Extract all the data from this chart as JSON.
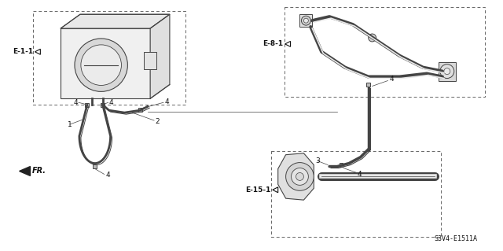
{
  "bg_color": "#ffffff",
  "diagram_code": "S3V4-E1511A",
  "text_color": "#111111",
  "line_color": "#444444",
  "comp_color": "#444444",
  "labels": {
    "E11": "E-1-1",
    "E81": "E-8-1",
    "E151": "E-15-1",
    "FR": "FR.",
    "p1": "1",
    "p2": "2",
    "p3": "3",
    "p4": "4"
  }
}
